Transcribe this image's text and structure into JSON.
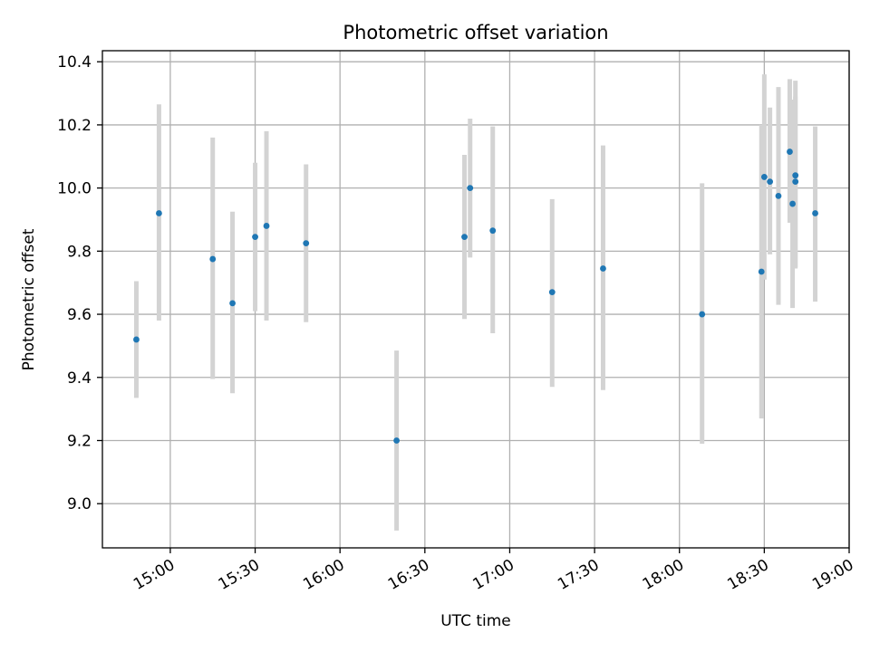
{
  "chart_data": {
    "type": "scatter",
    "title": "Photometric offset variation",
    "xlabel": "UTC time",
    "ylabel": "Photometric offset",
    "xlim": [
      "14:36",
      "19:00"
    ],
    "ylim": [
      8.86,
      10.435
    ],
    "x_ticks": [
      "15:00",
      "15:30",
      "16:00",
      "16:30",
      "17:00",
      "17:30",
      "18:00",
      "18:30",
      "19:00"
    ],
    "y_ticks": [
      "9.0",
      "9.2",
      "9.4",
      "9.6",
      "9.8",
      "10.0",
      "10.2",
      "10.4"
    ],
    "grid": true,
    "marker_color": "#1f77b4",
    "errorbar_color": "#d3d3d3",
    "points": [
      {
        "x": "14:48",
        "y": 9.52,
        "ylow": 9.335,
        "yhigh": 9.705
      },
      {
        "x": "14:56",
        "y": 9.92,
        "ylow": 9.58,
        "yhigh": 10.265
      },
      {
        "x": "15:15",
        "y": 9.775,
        "ylow": 9.395,
        "yhigh": 10.16
      },
      {
        "x": "15:22",
        "y": 9.635,
        "ylow": 9.35,
        "yhigh": 9.925
      },
      {
        "x": "15:30",
        "y": 9.845,
        "ylow": 9.61,
        "yhigh": 10.08
      },
      {
        "x": "15:34",
        "y": 9.88,
        "ylow": 9.58,
        "yhigh": 10.18
      },
      {
        "x": "15:48",
        "y": 9.825,
        "ylow": 9.575,
        "yhigh": 10.075
      },
      {
        "x": "16:20",
        "y": 9.2,
        "ylow": 8.915,
        "yhigh": 9.485
      },
      {
        "x": "16:44",
        "y": 9.845,
        "ylow": 9.585,
        "yhigh": 10.105
      },
      {
        "x": "16:46",
        "y": 10.0,
        "ylow": 9.78,
        "yhigh": 10.22
      },
      {
        "x": "16:54",
        "y": 9.865,
        "ylow": 9.54,
        "yhigh": 10.195
      },
      {
        "x": "17:15",
        "y": 9.67,
        "ylow": 9.37,
        "yhigh": 9.965
      },
      {
        "x": "17:33",
        "y": 9.745,
        "ylow": 9.36,
        "yhigh": 10.135
      },
      {
        "x": "18:08",
        "y": 9.6,
        "ylow": 9.19,
        "yhigh": 10.015
      },
      {
        "x": "18:29",
        "y": 9.735,
        "ylow": 9.27,
        "yhigh": 10.2
      },
      {
        "x": "18:30",
        "y": 10.035,
        "ylow": 9.71,
        "yhigh": 10.36
      },
      {
        "x": "18:32",
        "y": 10.02,
        "ylow": 9.79,
        "yhigh": 10.255
      },
      {
        "x": "18:35",
        "y": 9.975,
        "ylow": 9.63,
        "yhigh": 10.32
      },
      {
        "x": "18:39",
        "y": 10.115,
        "ylow": 9.89,
        "yhigh": 10.345
      },
      {
        "x": "18:40",
        "y": 9.95,
        "ylow": 9.62,
        "yhigh": 10.28
      },
      {
        "x": "18:41",
        "y": 10.02,
        "ylow": 9.75,
        "yhigh": 10.29
      },
      {
        "x": "18:41",
        "y": 10.04,
        "ylow": 9.745,
        "yhigh": 10.34
      },
      {
        "x": "18:48",
        "y": 9.92,
        "ylow": 9.64,
        "yhigh": 10.195
      }
    ]
  }
}
